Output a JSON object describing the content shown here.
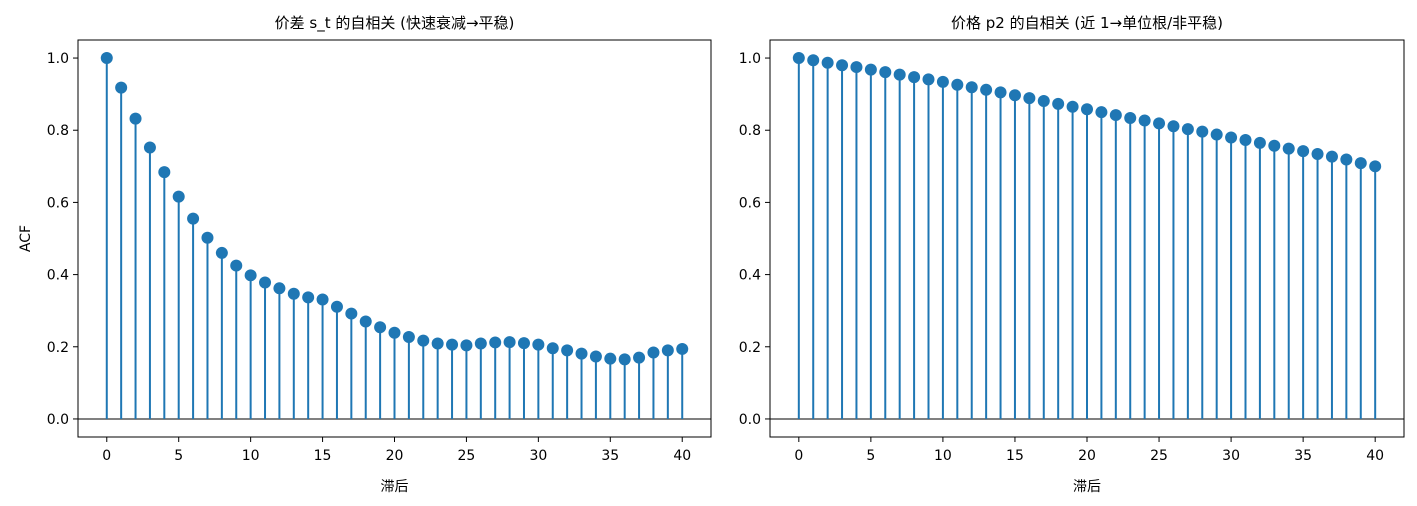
{
  "chart_data": [
    {
      "type": "stem",
      "title": "价差 s_t 的自相关 (快速衰减→平稳)",
      "xlabel": "滞后",
      "ylabel": "ACF",
      "xlim": [
        -2,
        42
      ],
      "ylim": [
        -0.05,
        1.05
      ],
      "xticks": [
        0,
        5,
        10,
        15,
        20,
        25,
        30,
        35,
        40
      ],
      "yticks": [
        0.0,
        0.2,
        0.4,
        0.6,
        0.8,
        1.0
      ],
      "ytick_labels": [
        "0.0",
        "0.2",
        "0.4",
        "0.6",
        "0.8",
        "1.0"
      ],
      "color": "#1f77b4",
      "baseline_color": "#000000",
      "grid": false,
      "legend": null,
      "x": [
        0,
        1,
        2,
        3,
        4,
        5,
        6,
        7,
        8,
        9,
        10,
        11,
        12,
        13,
        14,
        15,
        16,
        17,
        18,
        19,
        20,
        21,
        22,
        23,
        24,
        25,
        26,
        27,
        28,
        29,
        30,
        31,
        32,
        33,
        34,
        35,
        36,
        37,
        38,
        39,
        40
      ],
      "values": [
        1.0,
        0.918,
        0.832,
        0.752,
        0.684,
        0.616,
        0.555,
        0.502,
        0.46,
        0.425,
        0.398,
        0.378,
        0.362,
        0.347,
        0.337,
        0.331,
        0.311,
        0.292,
        0.27,
        0.254,
        0.239,
        0.227,
        0.217,
        0.209,
        0.206,
        0.204,
        0.209,
        0.212,
        0.213,
        0.21,
        0.206,
        0.196,
        0.19,
        0.181,
        0.173,
        0.167,
        0.165,
        0.17,
        0.184,
        0.19,
        0.194
      ]
    },
    {
      "type": "stem",
      "title": "价格 p2 的自相关 (近 1→单位根/非平稳)",
      "xlabel": "滞后",
      "ylabel": "",
      "xlim": [
        -2,
        42
      ],
      "ylim": [
        -0.05,
        1.05
      ],
      "xticks": [
        0,
        5,
        10,
        15,
        20,
        25,
        30,
        35,
        40
      ],
      "yticks": [
        0.0,
        0.2,
        0.4,
        0.6,
        0.8,
        1.0
      ],
      "ytick_labels": [
        "0.0",
        "0.2",
        "0.4",
        "0.6",
        "0.8",
        "1.0"
      ],
      "color": "#1f77b4",
      "baseline_color": "#000000",
      "grid": false,
      "legend": null,
      "x": [
        0,
        1,
        2,
        3,
        4,
        5,
        6,
        7,
        8,
        9,
        10,
        11,
        12,
        13,
        14,
        15,
        16,
        17,
        18,
        19,
        20,
        21,
        22,
        23,
        24,
        25,
        26,
        27,
        28,
        29,
        30,
        31,
        32,
        33,
        34,
        35,
        36,
        37,
        38,
        39,
        40
      ],
      "values": [
        1.0,
        0.994,
        0.987,
        0.98,
        0.975,
        0.968,
        0.961,
        0.954,
        0.947,
        0.941,
        0.934,
        0.926,
        0.919,
        0.912,
        0.905,
        0.897,
        0.889,
        0.881,
        0.873,
        0.865,
        0.858,
        0.85,
        0.842,
        0.834,
        0.827,
        0.819,
        0.811,
        0.803,
        0.796,
        0.788,
        0.78,
        0.773,
        0.765,
        0.757,
        0.749,
        0.742,
        0.734,
        0.727,
        0.719,
        0.709,
        0.7
      ]
    }
  ]
}
